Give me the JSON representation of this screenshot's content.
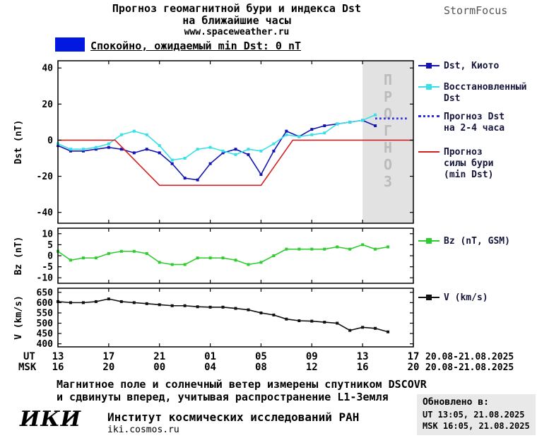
{
  "header": {
    "title_line1": "Прогноз геомагнитной бури и индекса Dst",
    "title_line2": "на ближайшие часы",
    "title_line3": "www.spaceweather.ru",
    "brand": "StormFocus"
  },
  "banner": {
    "label": "Спокойно, ожидаемый min Dst: 0 nT",
    "swatch_color": "#0018e0"
  },
  "chart_data": [
    {
      "type": "line",
      "title": "Dst index panel",
      "ylabel": "Dst (nT)",
      "ylim": [
        -46,
        44
      ],
      "yticks": [
        40,
        20,
        0,
        -20,
        -40
      ],
      "xlim_hours": [
        0,
        28
      ],
      "forecast_region": {
        "start_hour": 24,
        "end_hour": 28,
        "label": "ПРОГНОЗ",
        "fill": "#e2e2e2",
        "text_color": "#bbbbbb"
      },
      "series": [
        {
          "name": "Dst, Киото",
          "color": "#1414b4",
          "marker": "square",
          "x": [
            0,
            1,
            2,
            3,
            4,
            5,
            6,
            7,
            8,
            9,
            10,
            11,
            12,
            13,
            14,
            15,
            16,
            17,
            18,
            19,
            20,
            21,
            22,
            23,
            24,
            25
          ],
          "values": [
            -3,
            -6,
            -6,
            -5,
            -4,
            -5,
            -7,
            -5,
            -7,
            -13,
            -21,
            -22,
            -13,
            -7,
            -5,
            -8,
            -19,
            -6,
            5,
            2,
            6,
            8,
            9,
            10,
            11,
            8
          ]
        },
        {
          "name": "Восстановленный Dst",
          "color": "#38e0e8",
          "marker": "square",
          "x": [
            0,
            1,
            2,
            3,
            4,
            5,
            6,
            7,
            8,
            9,
            10,
            11,
            12,
            13,
            14,
            15,
            16,
            17,
            18,
            19,
            20,
            21,
            22,
            23,
            24,
            25
          ],
          "values": [
            -2,
            -5,
            -5,
            -4,
            -2,
            3,
            5,
            3,
            -3,
            -11,
            -10,
            -5,
            -4,
            -6,
            -8,
            -5,
            -6,
            -2,
            3,
            2,
            3,
            4,
            9,
            10,
            11,
            14
          ]
        },
        {
          "name": "Прогноз Dst на 2-4 часа",
          "color": "#2a2ae0",
          "style": "dotted",
          "x": [
            25,
            27.6
          ],
          "values": [
            12,
            12
          ]
        },
        {
          "name": "Прогноз силы бури (min Dst)",
          "color": "#d42020",
          "x": [
            0,
            4.5,
            8,
            16,
            18.5,
            28
          ],
          "values": [
            0,
            0,
            -25,
            -25,
            0,
            0
          ]
        }
      ]
    },
    {
      "type": "line",
      "title": "Bz panel",
      "ylabel": "Bz (nT)",
      "ylim": [
        -12.5,
        12.5
      ],
      "yticks": [
        10,
        5,
        0,
        -5,
        -10
      ],
      "xlim_hours": [
        0,
        28
      ],
      "series": [
        {
          "name": "Bz (nT, GSM)",
          "color": "#2ecc2e",
          "marker": "square",
          "x": [
            0,
            1,
            2,
            3,
            4,
            5,
            6,
            7,
            8,
            9,
            10,
            11,
            12,
            13,
            14,
            15,
            16,
            17,
            18,
            19,
            20,
            21,
            22,
            23,
            24,
            25,
            26
          ],
          "values": [
            2,
            -2,
            -1,
            -1,
            1,
            2,
            2,
            1,
            -3,
            -4,
            -4,
            -1,
            -1,
            -1,
            -2,
            -4,
            -3,
            0,
            3,
            3,
            3,
            3,
            4,
            3,
            5,
            3,
            4
          ]
        }
      ]
    },
    {
      "type": "line",
      "title": "Solar wind speed panel",
      "ylabel": "V (km/s)",
      "ylim": [
        385,
        670
      ],
      "yticks": [
        650,
        600,
        550,
        500,
        450,
        400
      ],
      "xlim_hours": [
        0,
        28
      ],
      "series": [
        {
          "name": "V (km/s)",
          "color": "#111111",
          "marker": "square",
          "x": [
            0,
            1,
            2,
            3,
            4,
            5,
            6,
            7,
            8,
            9,
            10,
            11,
            12,
            13,
            14,
            15,
            16,
            17,
            18,
            19,
            20,
            21,
            22,
            23,
            24,
            25,
            26
          ],
          "values": [
            605,
            600,
            600,
            605,
            618,
            605,
            600,
            595,
            590,
            585,
            585,
            580,
            578,
            578,
            572,
            565,
            550,
            540,
            520,
            512,
            510,
            505,
            500,
            465,
            480,
            475,
            458
          ]
        }
      ]
    }
  ],
  "xaxis": {
    "tick_hours": [
      0,
      4,
      8,
      12,
      16,
      20,
      24,
      28
    ],
    "ut_label": "UT",
    "msk_label": "MSK",
    "ut_ticks": [
      "13",
      "17",
      "21",
      "01",
      "05",
      "09",
      "13",
      "17"
    ],
    "msk_ticks": [
      "16",
      "20",
      "00",
      "04",
      "08",
      "12",
      "16",
      "20"
    ],
    "ut_date": "20.08-21.08.2025",
    "msk_date": "20.08-21.08.2025"
  },
  "footer": {
    "note_line1": "Магнитное поле и солнечный ветер измерены спутником DSCOVR",
    "note_line2": "и сдвинуты вперед, учитывая распространение L1-Земля",
    "logo": "ИКИ",
    "institute": "Институт космических исследований РАН",
    "site": "iki.cosmos.ru",
    "updated_label": "Обновлено в:",
    "updated_ut": "UT  13:05, 21.08.2025",
    "updated_msk": "MSK 16:05, 21.08.2025"
  }
}
